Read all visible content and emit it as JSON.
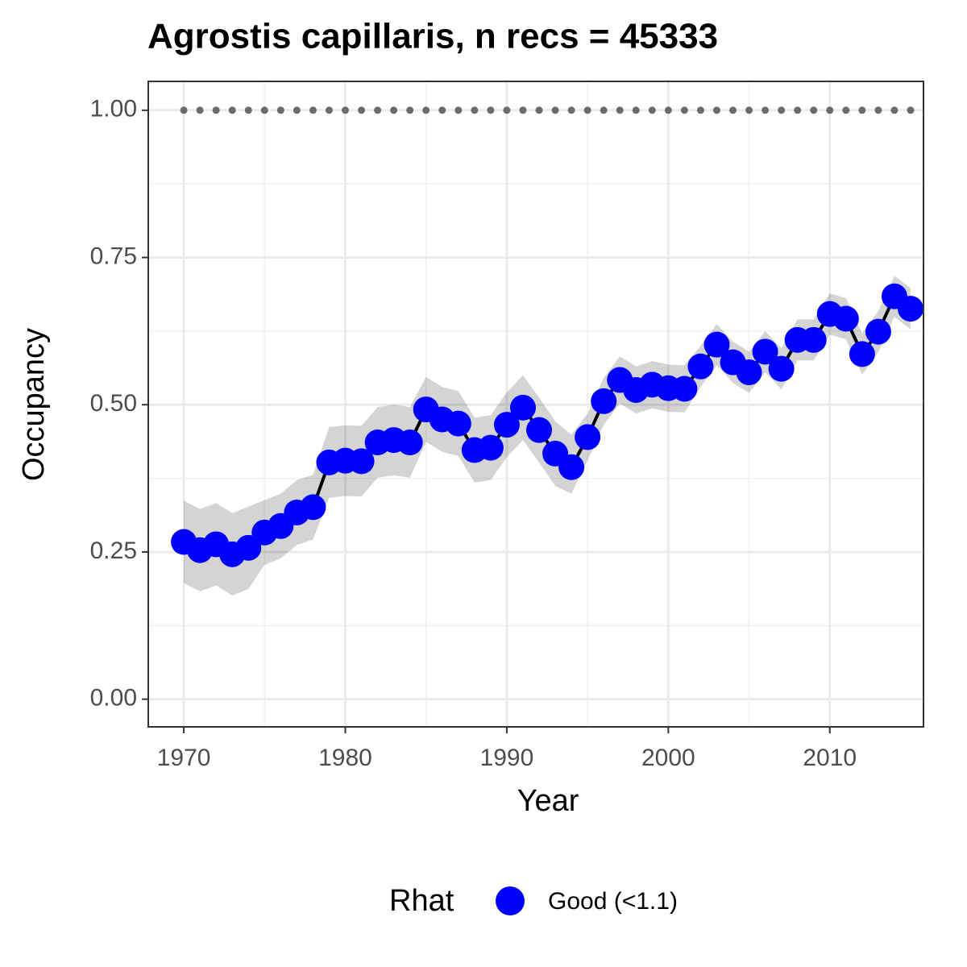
{
  "chart_data": {
    "type": "line",
    "title": "Agrostis capillaris, n recs = 45333",
    "x_label": "Year",
    "y_label": "Occupancy",
    "x": [
      1970,
      1971,
      1972,
      1973,
      1974,
      1975,
      1976,
      1977,
      1978,
      1979,
      1980,
      1981,
      1982,
      1983,
      1984,
      1985,
      1986,
      1987,
      1988,
      1989,
      1990,
      1991,
      1992,
      1993,
      1994,
      1995,
      1996,
      1997,
      1998,
      1999,
      2000,
      2001,
      2002,
      2003,
      2004,
      2005,
      2006,
      2007,
      2008,
      2009,
      2010,
      2011,
      2012,
      2013,
      2014,
      2015
    ],
    "series": [
      {
        "name": "Good (<1.1)",
        "color": "#0000ff",
        "values": [
          0.267,
          0.253,
          0.263,
          0.246,
          0.257,
          0.283,
          0.294,
          0.317,
          0.326,
          0.402,
          0.405,
          0.404,
          0.436,
          0.44,
          0.436,
          0.492,
          0.475,
          0.468,
          0.423,
          0.427,
          0.466,
          0.495,
          0.457,
          0.417,
          0.394,
          0.445,
          0.506,
          0.542,
          0.525,
          0.534,
          0.528,
          0.527,
          0.565,
          0.602,
          0.572,
          0.555,
          0.59,
          0.561,
          0.61,
          0.61,
          0.654,
          0.646,
          0.586,
          0.624,
          0.684,
          0.663
        ],
        "lower": [
          0.197,
          0.183,
          0.193,
          0.176,
          0.187,
          0.228,
          0.239,
          0.262,
          0.271,
          0.342,
          0.345,
          0.344,
          0.376,
          0.38,
          0.376,
          0.437,
          0.42,
          0.413,
          0.368,
          0.372,
          0.411,
          0.44,
          0.402,
          0.362,
          0.349,
          0.405,
          0.466,
          0.502,
          0.485,
          0.494,
          0.488,
          0.487,
          0.53,
          0.567,
          0.537,
          0.52,
          0.555,
          0.526,
          0.575,
          0.575,
          0.619,
          0.611,
          0.551,
          0.589,
          0.649,
          0.628
        ],
        "upper": [
          0.337,
          0.323,
          0.333,
          0.316,
          0.327,
          0.338,
          0.349,
          0.372,
          0.381,
          0.462,
          0.465,
          0.464,
          0.496,
          0.5,
          0.496,
          0.547,
          0.53,
          0.523,
          0.478,
          0.482,
          0.521,
          0.55,
          0.512,
          0.472,
          0.449,
          0.485,
          0.546,
          0.582,
          0.565,
          0.574,
          0.568,
          0.567,
          0.6,
          0.637,
          0.607,
          0.59,
          0.625,
          0.596,
          0.645,
          0.645,
          0.689,
          0.681,
          0.621,
          0.659,
          0.719,
          0.698
        ]
      }
    ],
    "reference": {
      "color": "#6b6b6b",
      "values": [
        1,
        1,
        1,
        1,
        1,
        1,
        1,
        1,
        1,
        1,
        1,
        1,
        1,
        1,
        1,
        1,
        1,
        1,
        1,
        1,
        1,
        1,
        1,
        1,
        1,
        1,
        1,
        1,
        1,
        1,
        1,
        1,
        1,
        1,
        1,
        1,
        1,
        1,
        1,
        1,
        1,
        1,
        1,
        1,
        1,
        1
      ]
    },
    "legend_title": "Rhat",
    "xlim": [
      1967.8,
      2015.8
    ],
    "ylim": [
      -0.047,
      1.049
    ],
    "xticks": [
      1970,
      1980,
      1990,
      2000,
      2010
    ],
    "yticks": [
      {
        "value": 0,
        "label": "0.00"
      },
      {
        "value": 0.25,
        "label": "0.25"
      },
      {
        "value": 0.5,
        "label": "0.50"
      },
      {
        "value": 0.75,
        "label": "0.75"
      },
      {
        "value": 1,
        "label": "1.00"
      }
    ],
    "grid": true
  }
}
